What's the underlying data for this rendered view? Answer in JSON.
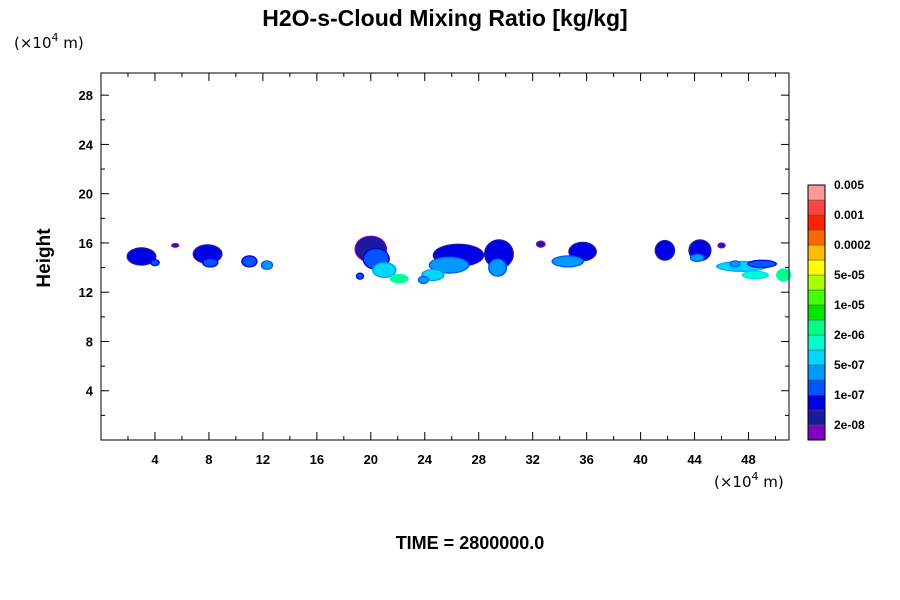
{
  "chart_data": {
    "type": "heatmap",
    "title": "H2O-s-Cloud Mixing Ratio [kg/kg]",
    "ylabel": "Height",
    "x_unit": [
      "(×10",
      "4",
      " m)"
    ],
    "y_unit": [
      "(×10",
      "4",
      " m)"
    ],
    "footer": "TIME = 2800000.0",
    "xlim": [
      0,
      51
    ],
    "ylim": [
      0,
      29.8
    ],
    "x_ticks": [
      "4",
      "8",
      "12",
      "16",
      "20",
      "24",
      "28",
      "32",
      "36",
      "40",
      "44",
      "48"
    ],
    "y_ticks": [
      "4",
      "8",
      "12",
      "16",
      "20",
      "24",
      "28"
    ],
    "colorbar": {
      "colors": [
        "#7f00bf",
        "#1a1a9f",
        "#0000e6",
        "#0055ff",
        "#0099ff",
        "#00d7ff",
        "#00ffcc",
        "#00ff88",
        "#00e600",
        "#44ff00",
        "#aaff00",
        "#ffff00",
        "#ffbb00",
        "#ff6600",
        "#ff2200",
        "#ff4444",
        "#ff9999"
      ],
      "labels": [
        {
          "text": "2e-08",
          "index": 1
        },
        {
          "text": "1e-07",
          "index": 3
        },
        {
          "text": "5e-07",
          "index": 5
        },
        {
          "text": "2e-06",
          "index": 7
        },
        {
          "text": "1e-05",
          "index": 9
        },
        {
          "text": "5e-05",
          "index": 11
        },
        {
          "text": "0.0002",
          "index": 13
        },
        {
          "text": "0.001",
          "index": 15
        },
        {
          "text": "0.005",
          "index": 17
        }
      ]
    },
    "clouds": [
      {
        "x": 3.0,
        "y": 14.9,
        "w": 2.0,
        "h": 1.3,
        "level": 2
      },
      {
        "x": 4.0,
        "y": 14.4,
        "w": 0.5,
        "h": 0.4,
        "level": 3
      },
      {
        "x": 5.5,
        "y": 15.8,
        "w": 0.4,
        "h": 0.2,
        "level": 1
      },
      {
        "x": 7.9,
        "y": 15.1,
        "w": 2.0,
        "h": 1.4,
        "level": 2
      },
      {
        "x": 8.1,
        "y": 14.4,
        "w": 1.0,
        "h": 0.6,
        "level": 3
      },
      {
        "x": 11.0,
        "y": 14.5,
        "w": 1.0,
        "h": 0.8,
        "level": 3
      },
      {
        "x": 12.3,
        "y": 14.2,
        "w": 0.7,
        "h": 0.6,
        "level": 4
      },
      {
        "x": 20.0,
        "y": 15.5,
        "w": 2.2,
        "h": 2.0,
        "level": 1
      },
      {
        "x": 20.4,
        "y": 14.7,
        "w": 1.8,
        "h": 1.6,
        "level": 3
      },
      {
        "x": 21.0,
        "y": 13.8,
        "w": 1.6,
        "h": 1.1,
        "level": 5
      },
      {
        "x": 22.1,
        "y": 13.1,
        "w": 1.2,
        "h": 0.6,
        "level": 7
      },
      {
        "x": 19.2,
        "y": 13.3,
        "w": 0.4,
        "h": 0.4,
        "level": 3
      },
      {
        "x": 26.5,
        "y": 15.0,
        "w": 3.6,
        "h": 1.7,
        "level": 2
      },
      {
        "x": 25.8,
        "y": 14.2,
        "w": 2.8,
        "h": 1.2,
        "level": 4
      },
      {
        "x": 24.6,
        "y": 13.4,
        "w": 1.5,
        "h": 0.8,
        "level": 5
      },
      {
        "x": 23.9,
        "y": 13.0,
        "w": 0.6,
        "h": 0.5,
        "level": 4
      },
      {
        "x": 29.5,
        "y": 15.1,
        "w": 2.0,
        "h": 2.2,
        "level": 2
      },
      {
        "x": 29.4,
        "y": 14.0,
        "w": 1.2,
        "h": 1.3,
        "level": 4
      },
      {
        "x": 32.6,
        "y": 15.9,
        "w": 0.5,
        "h": 0.4,
        "level": 1
      },
      {
        "x": 35.7,
        "y": 15.3,
        "w": 1.9,
        "h": 1.4,
        "level": 2
      },
      {
        "x": 34.6,
        "y": 14.5,
        "w": 2.2,
        "h": 0.8,
        "level": 4
      },
      {
        "x": 41.8,
        "y": 15.4,
        "w": 1.3,
        "h": 1.5,
        "level": 2
      },
      {
        "x": 44.4,
        "y": 15.4,
        "w": 1.5,
        "h": 1.6,
        "level": 2
      },
      {
        "x": 44.2,
        "y": 14.8,
        "w": 0.9,
        "h": 0.5,
        "level": 4
      },
      {
        "x": 46.0,
        "y": 15.8,
        "w": 0.4,
        "h": 0.3,
        "level": 1
      },
      {
        "x": 47.5,
        "y": 14.1,
        "w": 3.6,
        "h": 0.7,
        "level": 5
      },
      {
        "x": 49.0,
        "y": 14.3,
        "w": 2.0,
        "h": 0.5,
        "level": 3
      },
      {
        "x": 48.5,
        "y": 13.4,
        "w": 1.8,
        "h": 0.5,
        "level": 6
      },
      {
        "x": 50.6,
        "y": 13.4,
        "w": 0.9,
        "h": 0.9,
        "level": 7
      },
      {
        "x": 47.0,
        "y": 14.3,
        "w": 0.6,
        "h": 0.4,
        "level": 4
      }
    ]
  }
}
